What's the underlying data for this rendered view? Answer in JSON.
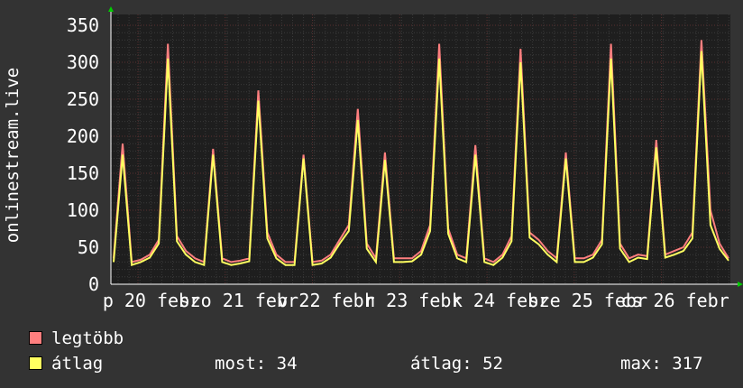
{
  "chart_data": {
    "type": "line",
    "ylabel": "onlinestream.live",
    "ylim": [
      0,
      350
    ],
    "yticks": [
      0,
      50,
      100,
      150,
      200,
      250,
      300,
      350
    ],
    "xticks": [
      "p 20 febr",
      "szo 21 febr",
      "v 22 febr",
      "h 23 febr",
      "k 24 febr",
      "sze 25 febr",
      "cs 26 febr"
    ],
    "grid": true,
    "series": [
      {
        "name": "legtöbb",
        "color": "#ff7f7f",
        "values": [
          35,
          190,
          30,
          33,
          40,
          60,
          325,
          65,
          45,
          35,
          30,
          183,
          35,
          30,
          32,
          35,
          262,
          70,
          40,
          30,
          30,
          175,
          30,
          32,
          40,
          60,
          80,
          237,
          55,
          35,
          178,
          35,
          35,
          35,
          45,
          80,
          325,
          75,
          40,
          35,
          188,
          35,
          30,
          40,
          65,
          318,
          70,
          60,
          45,
          35,
          178,
          35,
          35,
          40,
          60,
          325,
          55,
          35,
          40,
          38,
          195,
          40,
          45,
          50,
          70,
          330,
          100,
          55,
          35
        ]
      },
      {
        "name": "átlag",
        "color": "#ffff60",
        "values": [
          30,
          175,
          26,
          30,
          36,
          55,
          305,
          58,
          40,
          30,
          26,
          175,
          30,
          26,
          28,
          31,
          248,
          62,
          35,
          26,
          26,
          170,
          26,
          28,
          36,
          55,
          72,
          222,
          48,
          30,
          168,
          30,
          30,
          31,
          40,
          72,
          305,
          68,
          35,
          30,
          175,
          30,
          26,
          36,
          58,
          300,
          63,
          54,
          40,
          30,
          170,
          30,
          30,
          36,
          54,
          305,
          48,
          30,
          36,
          34,
          185,
          36,
          40,
          45,
          62,
          315,
          80,
          48,
          32
        ]
      }
    ]
  },
  "legend": {
    "items": [
      {
        "label": "legtöbb",
        "color": "#ff7f7f"
      },
      {
        "label": "átlag",
        "color": "#ffff60"
      }
    ],
    "stats": {
      "most": "most: 34",
      "atlag": "átlag: 52",
      "max": "max: 317"
    }
  }
}
